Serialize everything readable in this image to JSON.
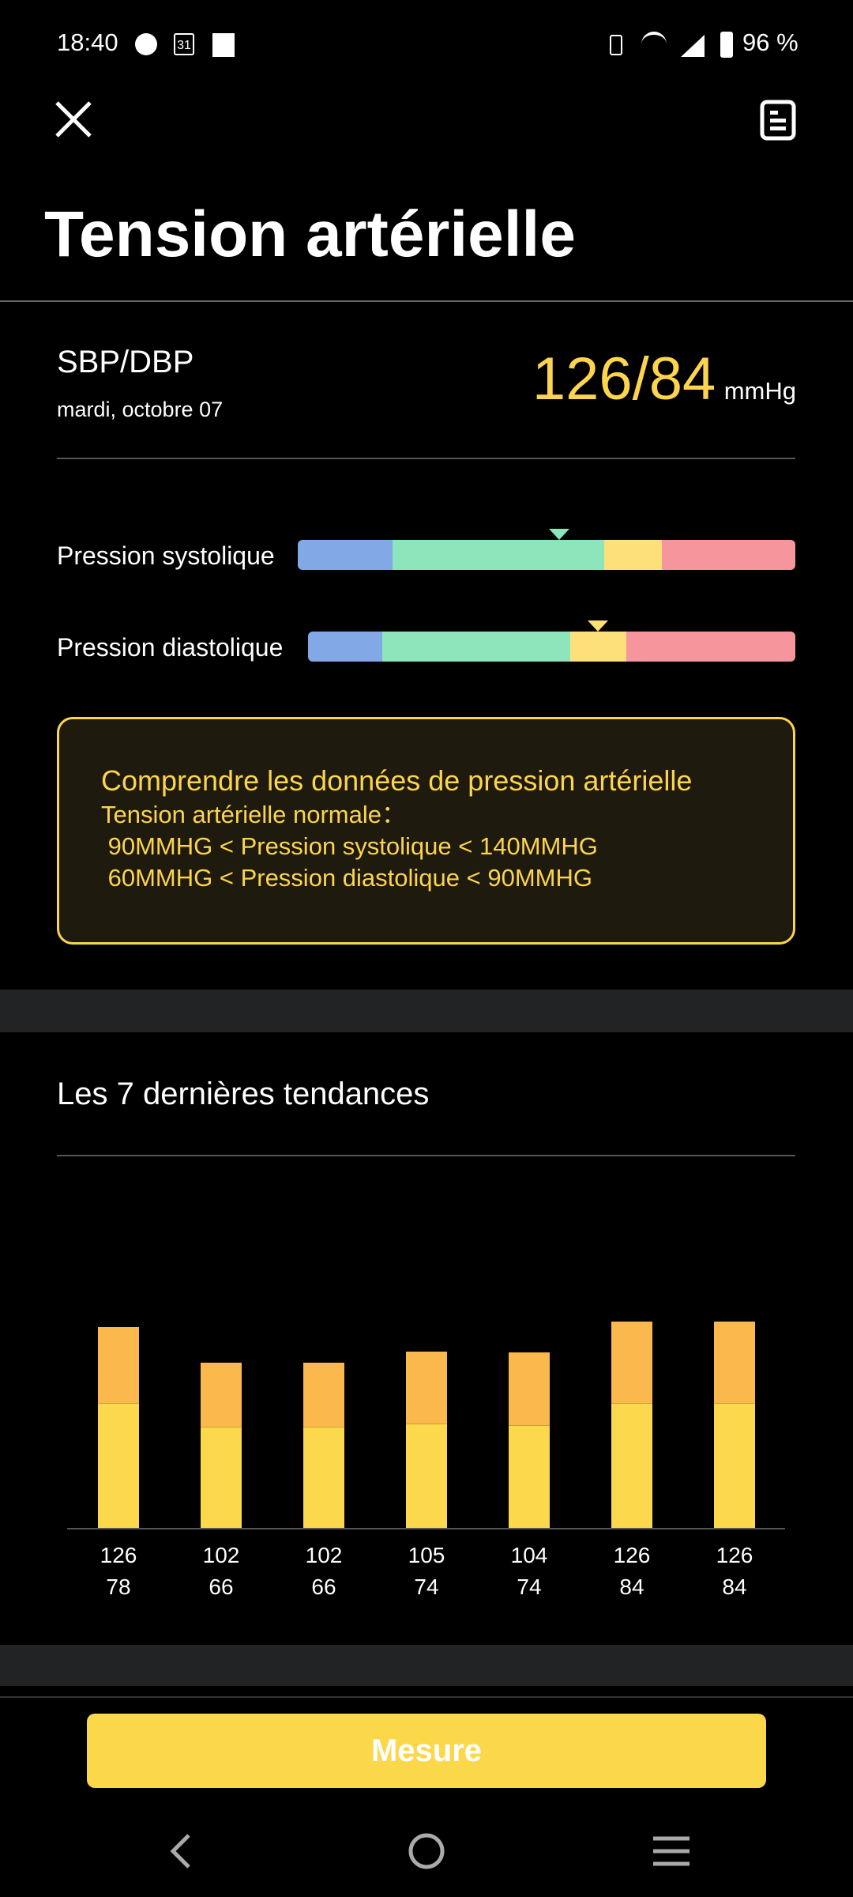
{
  "status_bar": {
    "time": "18:40",
    "battery": "96 %",
    "left_icons": [
      "messenger-icon",
      "calendar-icon",
      "app-notification-icon"
    ],
    "right_icons": [
      "vibrate-icon",
      "wifi-icon",
      "signal-icon",
      "battery-icon"
    ],
    "calendar_day": "31"
  },
  "header": {
    "title": "Tension artérielle",
    "close_icon": "close-icon",
    "report_icon": "document-icon"
  },
  "summary": {
    "label": "SBP/DBP",
    "date": "mardi, octobre 07",
    "value": "126/84",
    "unit": "mmHg",
    "value_color": "#fcd44d"
  },
  "ranges": {
    "systolic": {
      "label": "Pression systolique",
      "value": 126,
      "marker_color": "#8ce5bb"
    },
    "diastolic": {
      "label": "Pression diastolique",
      "value": 84,
      "marker_color": "#fde07a"
    },
    "colors": [
      "#82a9e6",
      "#8ce5bb",
      "#fde07a",
      "#f7959c"
    ]
  },
  "info": {
    "title": "Comprendre les données de pression artérielle",
    "line1": "Tension artérielle normale：",
    "line2": " 90MMHG < Pression systolique < 140MMHG",
    "line3": " 60MMHG < Pression diastolique < 90MMHG"
  },
  "trends": {
    "title": "Les 7 dernières tendances"
  },
  "chart_data": {
    "type": "bar",
    "stacked": true,
    "categories": [
      "1",
      "2",
      "3",
      "4",
      "5",
      "6",
      "7"
    ],
    "series": [
      {
        "values": [
          126,
          102,
          102,
          105,
          104,
          126,
          126
        ],
        "color": "#fcd94c"
      },
      {
        "values": [
          78,
          66,
          66,
          74,
          74,
          84,
          84
        ],
        "color": "#fbb84c"
      }
    ],
    "grid": false
  },
  "footer": {
    "button_label": "Mesure",
    "button_color": "#fbd84a"
  },
  "nav": {
    "back": "back-icon",
    "home": "home-icon",
    "recents": "recents-icon"
  }
}
